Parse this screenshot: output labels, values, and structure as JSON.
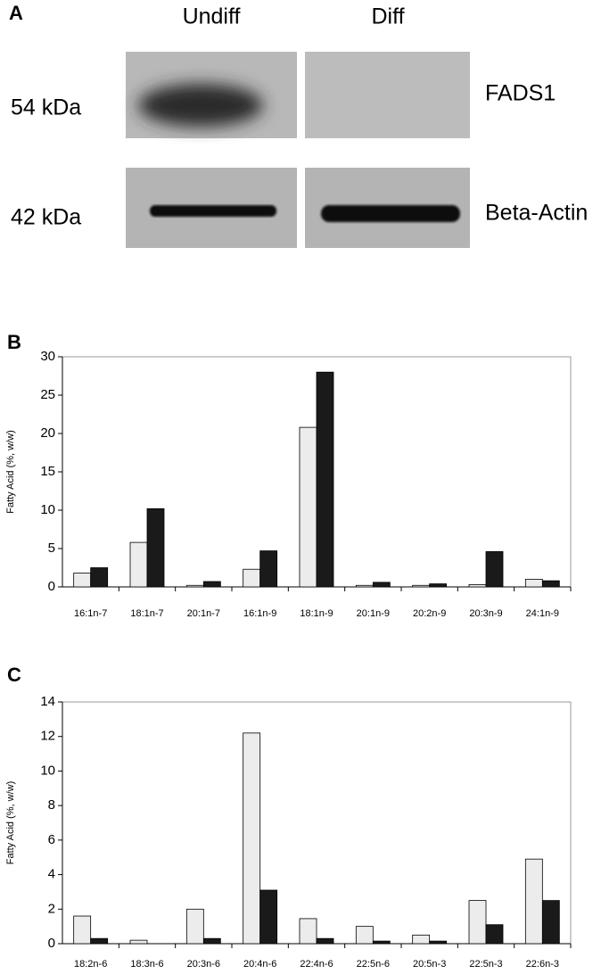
{
  "panel_a": {
    "label": "A",
    "columns": [
      "Undiff",
      "Diff"
    ],
    "markers": [
      "54 kDa",
      "42 kDa"
    ],
    "proteins": [
      "FADS1",
      "Beta-Actin"
    ]
  },
  "chart_data": [
    {
      "type": "bar",
      "panel_label": "B",
      "y_label": "Fatty Acid (%, w/w)",
      "categories": [
        "16:1n-7",
        "18:1n-7",
        "20:1n-7",
        "16:1n-9",
        "18:1n-9",
        "20:1n-9",
        "20:2n-9",
        "20:3n-9",
        "24:1n-9"
      ],
      "series": [
        {
          "color": "#ececec",
          "values": [
            1.8,
            5.8,
            0.2,
            2.3,
            20.8,
            0.2,
            0.2,
            0.3,
            1.0
          ]
        },
        {
          "color": "#1a1a1a",
          "values": [
            2.5,
            10.2,
            0.7,
            4.7,
            28.0,
            0.6,
            0.4,
            4.6,
            0.8
          ]
        }
      ],
      "ylim": [
        0,
        30
      ],
      "yticks": [
        0,
        5,
        10,
        15,
        20,
        25,
        30
      ]
    },
    {
      "type": "bar",
      "panel_label": "C",
      "y_label": "Fatty Acid (%, w/w)",
      "categories": [
        "18:2n-6",
        "18:3n-6",
        "20:3n-6",
        "20:4n-6",
        "22:4n-6",
        "22:5n-6",
        "20:5n-3",
        "22:5n-3",
        "22:6n-3"
      ],
      "series": [
        {
          "color": "#ececec",
          "values": [
            1.6,
            0.2,
            2.0,
            12.2,
            1.45,
            1.0,
            0.5,
            2.5,
            4.9
          ]
        },
        {
          "color": "#1a1a1a",
          "values": [
            0.3,
            0,
            0.3,
            3.1,
            0.3,
            0.15,
            0.15,
            1.1,
            2.5
          ]
        }
      ],
      "ylim": [
        0,
        14
      ],
      "yticks": [
        0,
        2,
        4,
        6,
        8,
        10,
        12,
        14
      ]
    }
  ]
}
